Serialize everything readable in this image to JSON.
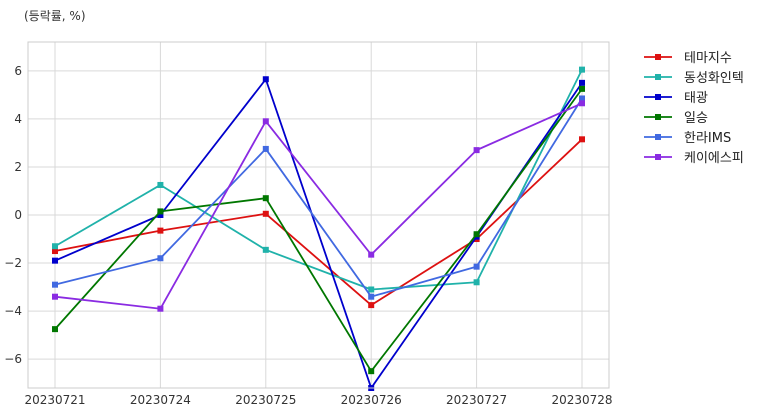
{
  "chart_data": {
    "type": "line",
    "unit_label": "(등락률, %)",
    "categories": [
      "20230721",
      "20230724",
      "20230725",
      "20230726",
      "20230727",
      "20230728"
    ],
    "ylim": [
      -7.2,
      7.2
    ],
    "yticks": [
      -6,
      -4,
      -2,
      0,
      2,
      4,
      6
    ],
    "grid": true,
    "legend_position": "right-top, outside",
    "series": [
      {
        "name": "테마지수",
        "color": "#dd1111",
        "values": [
          -1.5,
          -0.65,
          0.05,
          -3.75,
          -1.0,
          3.15
        ]
      },
      {
        "name": "동성화인텍",
        "color": "#20b2aa",
        "values": [
          -1.3,
          1.25,
          -1.45,
          -3.1,
          -2.8,
          6.05
        ]
      },
      {
        "name": "태광",
        "color": "#0000cc",
        "values": [
          -1.9,
          0.0,
          5.65,
          -7.2,
          -0.9,
          5.5
        ]
      },
      {
        "name": "일승",
        "color": "#007700",
        "values": [
          -4.75,
          0.15,
          0.7,
          -6.5,
          -0.8,
          5.25
        ]
      },
      {
        "name": "한라IMS",
        "color": "#4169e1",
        "values": [
          -2.9,
          -1.8,
          2.75,
          -3.4,
          -2.15,
          4.85
        ]
      },
      {
        "name": "케이에스피",
        "color": "#8a2be2",
        "values": [
          -3.4,
          -3.9,
          3.9,
          -1.65,
          2.7,
          4.65
        ]
      }
    ]
  }
}
